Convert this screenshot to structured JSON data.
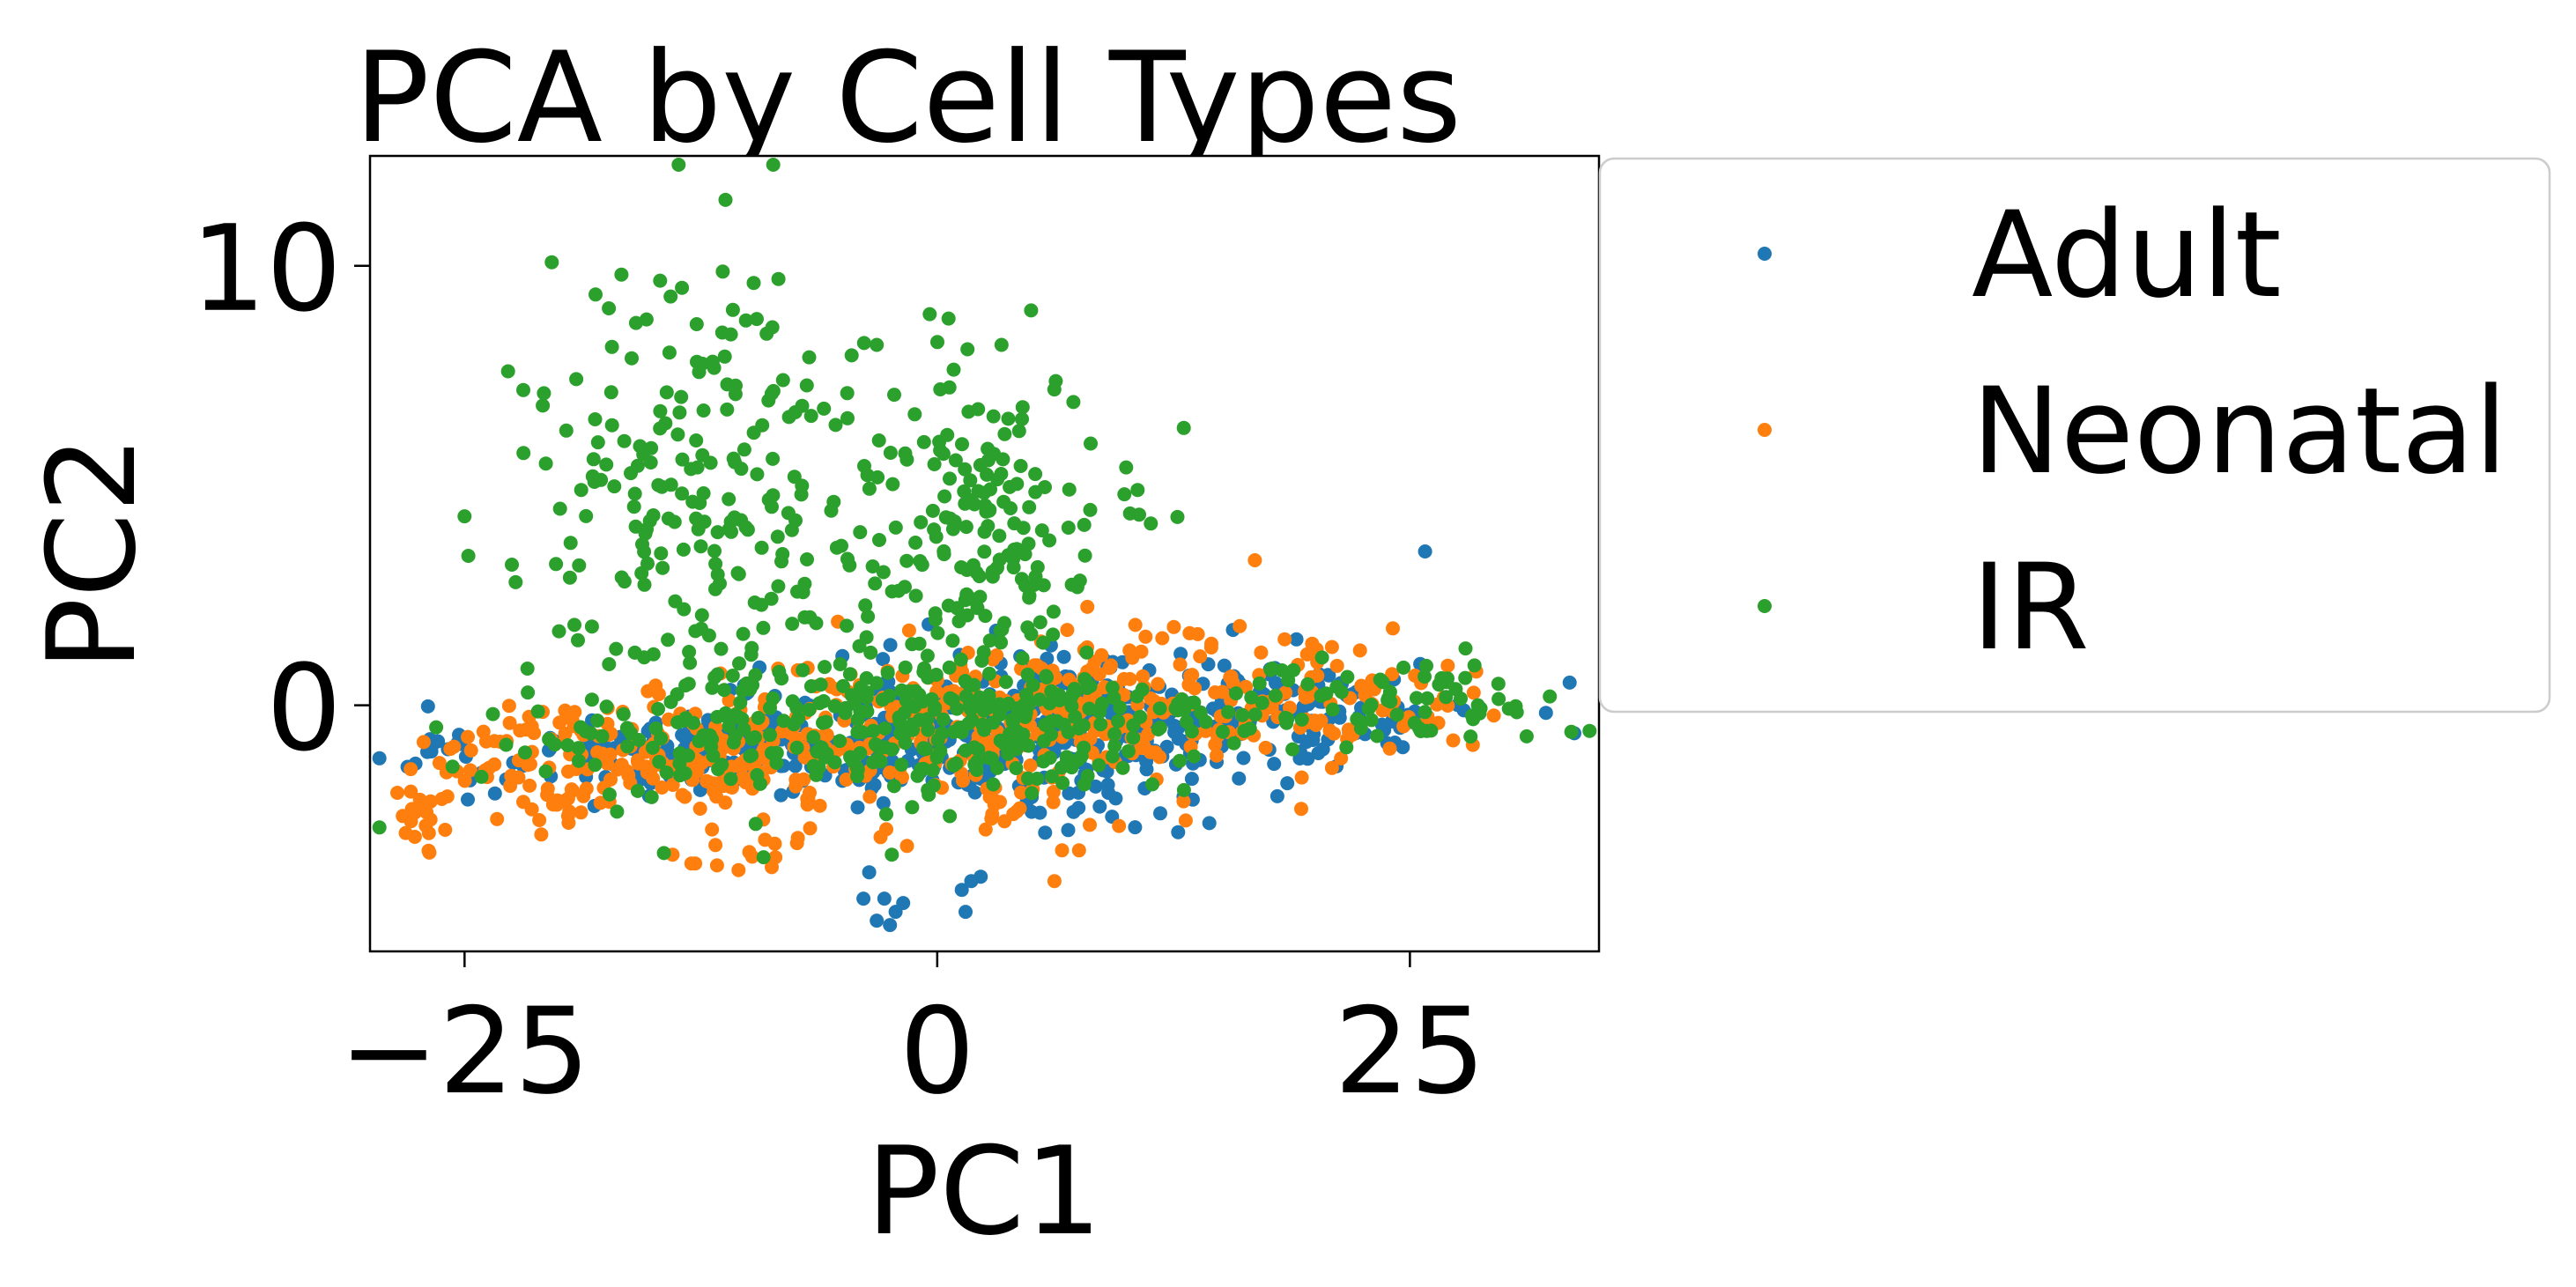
{
  "chart_data": {
    "type": "scatter",
    "title": "PCA by Cell Types",
    "xlabel": "PC1",
    "ylabel": "PC2",
    "xlim": [
      -30,
      35
    ],
    "ylim": [
      -5.6,
      12.5
    ],
    "xticks": [
      -25,
      0,
      25
    ],
    "xtick_labels": [
      "−25",
      "0",
      "25"
    ],
    "yticks": [
      0,
      10
    ],
    "ytick_labels": [
      "0",
      "10"
    ],
    "grid": false,
    "legend_position": "outside-right",
    "series": [
      {
        "name": "Adult",
        "color": "#1f77b4",
        "cluster_ellipses": [
          {
            "cx": -10,
            "cy": -1.0,
            "sx": 7.0,
            "sy": 0.5,
            "n": 220
          },
          {
            "cx": 6,
            "cy": -0.4,
            "sx": 6.0,
            "sy": 0.8,
            "n": 250
          },
          {
            "cx": 19,
            "cy": -0.1,
            "sx": 5.0,
            "sy": 0.6,
            "n": 120
          },
          {
            "cx": 8,
            "cy": -1.9,
            "sx": 3.0,
            "sy": 0.5,
            "n": 30
          },
          {
            "cx": -26,
            "cy": -1.4,
            "sx": 1.5,
            "sy": 0.4,
            "n": 12
          }
        ],
        "points": [
          [
            -3.6,
            -3.8
          ],
          [
            -2.8,
            -4.4
          ],
          [
            -2.2,
            -4.7
          ],
          [
            -3.2,
            -4.9
          ],
          [
            -2.5,
            -5.0
          ],
          [
            -1.8,
            -4.5
          ],
          [
            -3.9,
            -4.4
          ],
          [
            1.3,
            -4.2
          ],
          [
            1.8,
            -4.0
          ],
          [
            1.5,
            -4.7
          ],
          [
            2.3,
            -3.9
          ],
          [
            25.8,
            3.5
          ],
          [
            16.2,
            -1.2
          ],
          [
            19.0,
            1.5
          ],
          [
            20.4,
            -1.0
          ]
        ]
      },
      {
        "name": "Neonatal",
        "color": "#ff7f0e",
        "cluster_ellipses": [
          {
            "cx": -14,
            "cy": -1.1,
            "sx": 6.0,
            "sy": 0.6,
            "n": 200
          },
          {
            "cx": 5,
            "cy": -0.3,
            "sx": 8.0,
            "sy": 0.9,
            "n": 300
          },
          {
            "cx": 19,
            "cy": 0.3,
            "sx": 5.0,
            "sy": 0.6,
            "n": 80
          },
          {
            "cx": -27,
            "cy": -2.4,
            "sx": 0.8,
            "sy": 0.6,
            "n": 22
          },
          {
            "cx": -20,
            "cy": -2.3,
            "sx": 1.0,
            "sy": 0.4,
            "n": 15
          },
          {
            "cx": -9,
            "cy": -3.3,
            "sx": 1.5,
            "sy": 0.3,
            "n": 14
          },
          {
            "cx": 3,
            "cy": -2.2,
            "sx": 1.2,
            "sy": 0.4,
            "n": 14
          }
        ],
        "points": [
          [
            16.8,
            3.3
          ],
          [
            27.0,
            0.9
          ],
          [
            6.6,
            -3.3
          ],
          [
            7.5,
            -3.3
          ],
          [
            6.2,
            -4.0
          ],
          [
            -3.0,
            -3.0
          ],
          [
            -1.6,
            -3.2
          ],
          [
            -13.0,
            -3.6
          ],
          [
            -14.0,
            -3.4
          ],
          [
            -12.8,
            -3.6
          ],
          [
            -24.0,
            -0.6
          ],
          [
            -25.4,
            -1.5
          ],
          [
            26.5,
            -0.4
          ],
          [
            16.0,
            1.8
          ],
          [
            14.5,
            1.4
          ]
        ]
      },
      {
        "name": "IR",
        "color": "#2ca02c",
        "cluster_ellipses": [
          {
            "cx": -12,
            "cy": 4.5,
            "sx": 5.0,
            "sy": 2.6,
            "n": 220
          },
          {
            "cx": 2,
            "cy": 3.5,
            "sx": 3.5,
            "sy": 2.0,
            "n": 190
          },
          {
            "cx": 0,
            "cy": -0.5,
            "sx": 8.0,
            "sy": 0.9,
            "n": 280
          },
          {
            "cx": 22,
            "cy": 0.0,
            "sx": 6.0,
            "sy": 0.5,
            "n": 80
          },
          {
            "cx": -15,
            "cy": -0.8,
            "sx": 4.0,
            "sy": 0.5,
            "n": 40
          }
        ],
        "points": [
          [
            -11.2,
            11.5
          ],
          [
            -16.7,
            9.8
          ],
          [
            -8.4,
            9.7
          ],
          [
            -13.5,
            9.5
          ],
          [
            -14.1,
            9.3
          ],
          [
            -0.4,
            8.9
          ],
          [
            0.6,
            8.8
          ],
          [
            1.6,
            8.1
          ],
          [
            3.4,
            8.2
          ],
          [
            -3.2,
            8.2
          ],
          [
            -22.7,
            7.6
          ],
          [
            -20.8,
            7.1
          ],
          [
            -25.0,
            4.3
          ],
          [
            -24.8,
            3.4
          ],
          [
            -22.5,
            3.2
          ],
          [
            -22.3,
            2.8
          ],
          [
            -20.7,
            5.5
          ],
          [
            7.2,
            6.9
          ],
          [
            10.6,
            4.9
          ],
          [
            9.9,
            4.8
          ],
          [
            32.4,
            0.2
          ],
          [
            30.5,
            -0.1
          ],
          [
            28.6,
            0.0
          ],
          [
            -26.5,
            -0.5
          ],
          [
            -22.8,
            -0.9
          ],
          [
            -23.5,
            -0.2
          ],
          [
            -9.6,
            -2.7
          ],
          [
            -2.4,
            -3.4
          ],
          [
            5.0,
            -2.0
          ]
        ]
      }
    ]
  }
}
